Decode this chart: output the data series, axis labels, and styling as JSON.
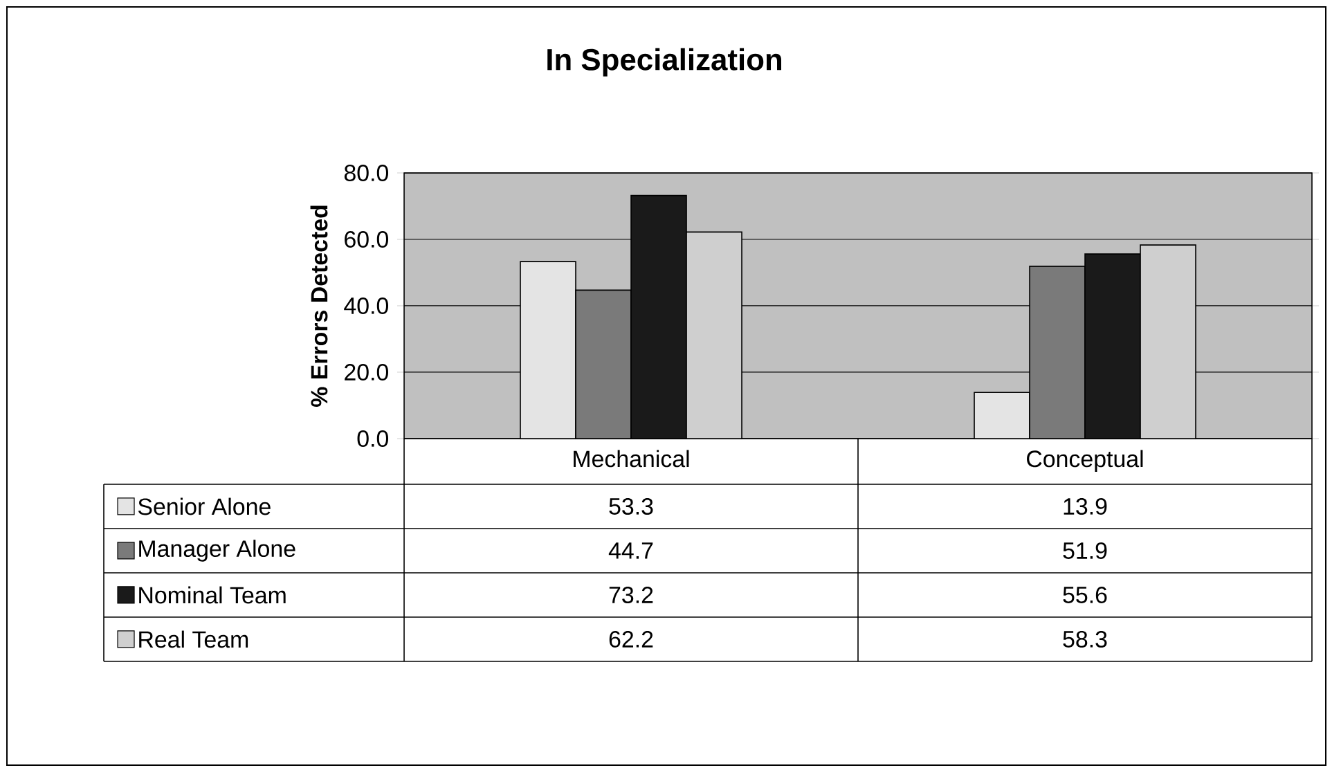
{
  "chart_data": {
    "type": "bar",
    "title": "In Specialization",
    "ylabel": "% Errors Detected",
    "categories": [
      "Mechanical",
      "Conceptual"
    ],
    "series": [
      {
        "name": "Senior Alone",
        "color": "#e4e4e4",
        "values": [
          53.3,
          13.9
        ]
      },
      {
        "name": "Manager Alone",
        "color": "#7a7a7a",
        "values": [
          44.7,
          51.9
        ]
      },
      {
        "name": "Nominal Team",
        "color": "#1a1a1a",
        "values": [
          73.2,
          55.6
        ]
      },
      {
        "name": "Real Team",
        "color": "#cfcfcf",
        "values": [
          62.2,
          58.3
        ]
      }
    ],
    "ylim": [
      0,
      80
    ],
    "yticks": [
      {
        "value": 0,
        "label": "0.0"
      },
      {
        "value": 20,
        "label": "20.0"
      },
      {
        "value": 40,
        "label": "40.0"
      },
      {
        "value": 60,
        "label": "60.0"
      },
      {
        "value": 80,
        "label": "80.0"
      }
    ],
    "grid": "y",
    "legend": "bottom",
    "data_labels": true
  }
}
